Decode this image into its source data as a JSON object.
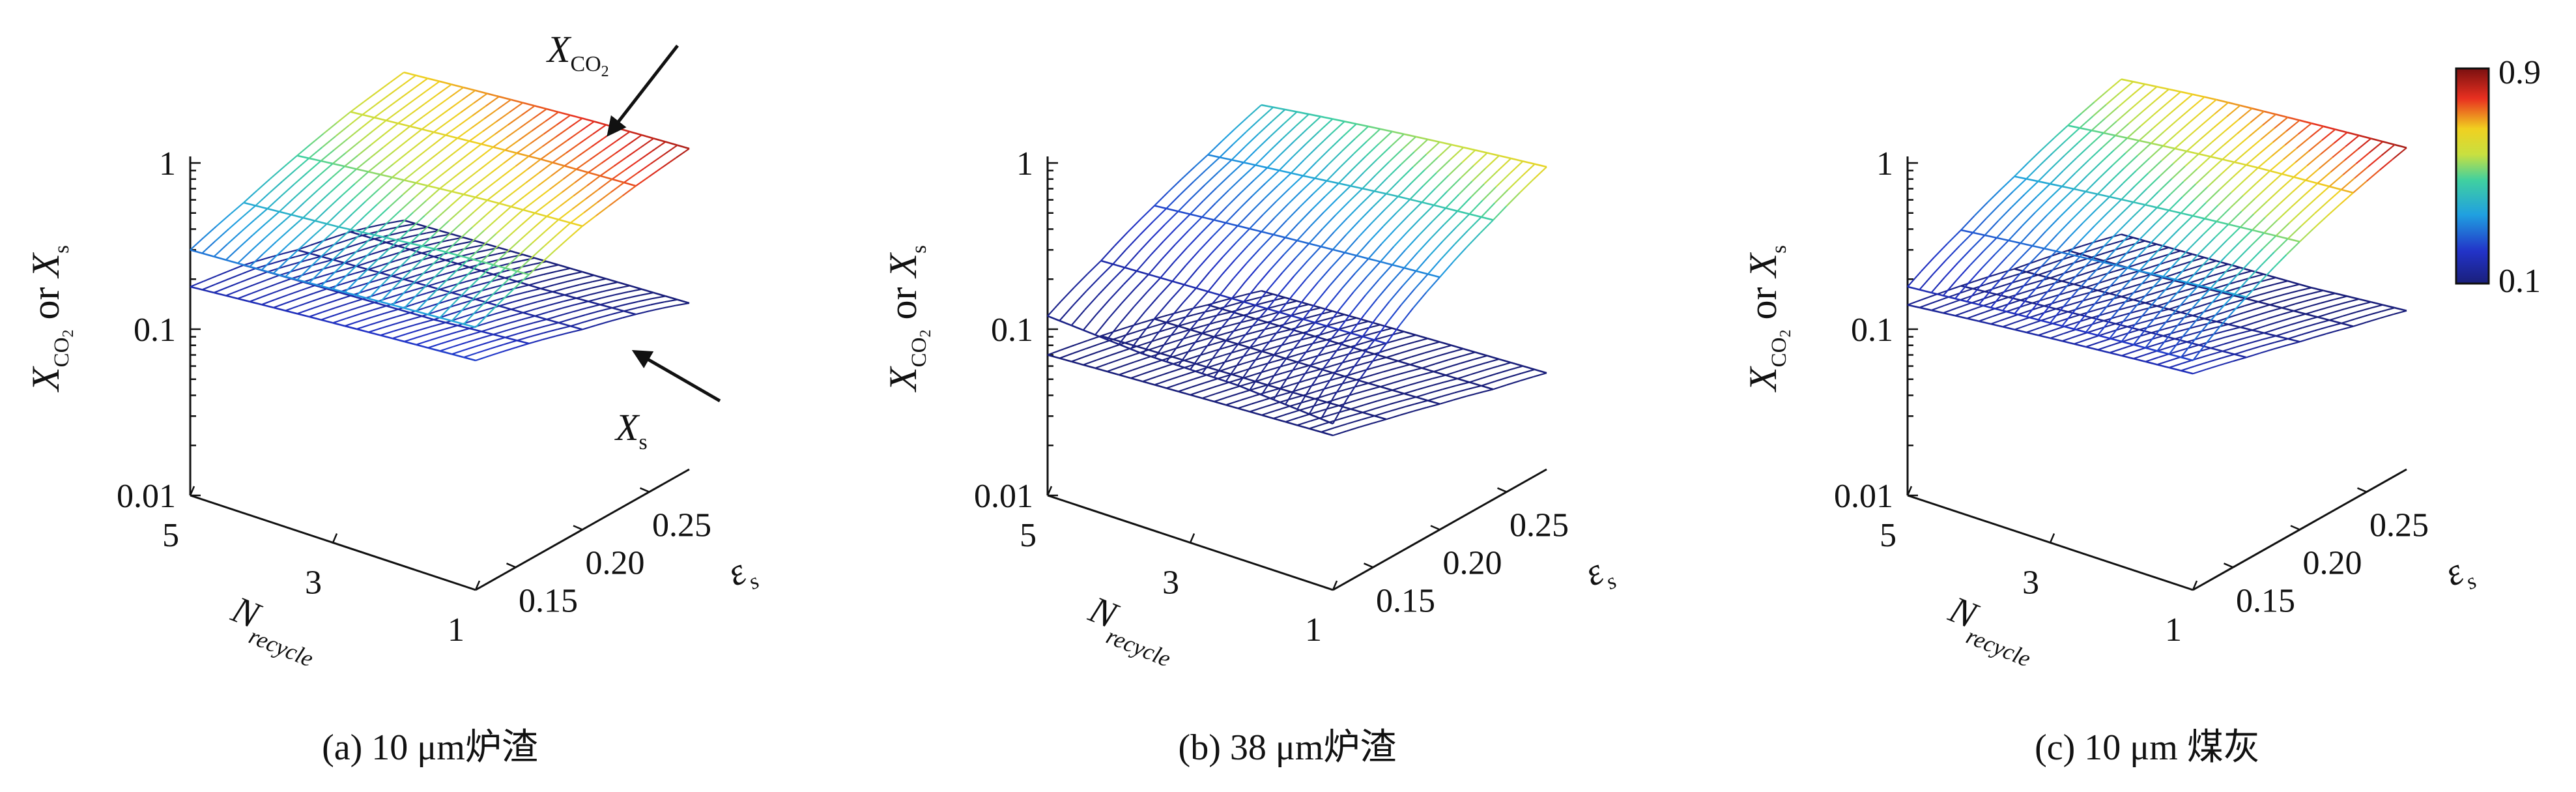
{
  "chart_data": {
    "type": "surface3d",
    "panels": [
      {
        "id": "a",
        "caption": "(a) 10 μm炉渣",
        "surfaces": [
          {
            "name": "X_CO2",
            "z_grid": [
              [
                0.3,
                0.38,
                0.48,
                0.58,
                0.66
              ],
              [
                0.32,
                0.42,
                0.55,
                0.65,
                0.73
              ],
              [
                0.35,
                0.48,
                0.62,
                0.72,
                0.8
              ],
              [
                0.38,
                0.52,
                0.67,
                0.77,
                0.85
              ]
            ]
          },
          {
            "name": "X_s",
            "z_grid": [
              [
                0.18,
                0.16,
                0.13,
                0.11,
                0.085
              ],
              [
                0.2,
                0.17,
                0.14,
                0.115,
                0.09
              ],
              [
                0.22,
                0.18,
                0.15,
                0.12,
                0.095
              ],
              [
                0.24,
                0.2,
                0.16,
                0.13,
                0.1
              ]
            ]
          }
        ],
        "annotations": [
          {
            "base": "X",
            "sub": "CO",
            "sub2": "2",
            "points_to": "X_CO2"
          },
          {
            "base": "X",
            "sub": "s",
            "sub2": "",
            "points_to": "X_s"
          }
        ]
      },
      {
        "id": "b",
        "caption": "(b) 38 μm炉渣",
        "surfaces": [
          {
            "name": "X_CO2",
            "z_grid": [
              [
                0.12,
                0.17,
                0.24,
                0.32,
                0.42
              ],
              [
                0.11,
                0.18,
                0.27,
                0.37,
                0.5
              ],
              [
                0.11,
                0.19,
                0.3,
                0.43,
                0.58
              ],
              [
                0.1,
                0.2,
                0.33,
                0.48,
                0.66
              ]
            ]
          },
          {
            "name": "X_s",
            "z_grid": [
              [
                0.07,
                0.06,
                0.05,
                0.04,
                0.032
              ],
              [
                0.075,
                0.063,
                0.052,
                0.042,
                0.034
              ],
              [
                0.08,
                0.066,
                0.054,
                0.044,
                0.036
              ],
              [
                0.085,
                0.07,
                0.057,
                0.046,
                0.038
              ]
            ]
          }
        ],
        "annotations": []
      },
      {
        "id": "c",
        "caption": "(c) 10 μm 煤灰",
        "surfaces": [
          {
            "name": "X_CO2",
            "z_grid": [
              [
                0.18,
                0.26,
                0.36,
                0.48,
                0.6
              ],
              [
                0.2,
                0.3,
                0.42,
                0.56,
                0.7
              ],
              [
                0.22,
                0.34,
                0.48,
                0.64,
                0.78
              ],
              [
                0.24,
                0.38,
                0.54,
                0.7,
                0.86
              ]
            ]
          },
          {
            "name": "X_s",
            "z_grid": [
              [
                0.14,
                0.12,
                0.1,
                0.085,
                0.07
              ],
              [
                0.16,
                0.135,
                0.11,
                0.09,
                0.075
              ],
              [
                0.18,
                0.15,
                0.12,
                0.1,
                0.08
              ],
              [
                0.2,
                0.165,
                0.135,
                0.11,
                0.09
              ]
            ]
          }
        ],
        "annotations": []
      }
    ],
    "axes": {
      "x": {
        "label": "N",
        "label_sub": "recycle",
        "ticks": [
          "5",
          "3",
          "1"
        ],
        "range": [
          5,
          1
        ]
      },
      "y": {
        "label": "ε",
        "label_sub": "s",
        "ticks": [
          "0.15",
          "0.20",
          "0.25"
        ],
        "range": [
          0.12,
          0.28
        ]
      },
      "z": {
        "label_parts": [
          "X",
          "CO",
          "2",
          "or ",
          "X",
          "s"
        ],
        "scale": "log",
        "ticks": [
          "0.01",
          "0.1",
          "1"
        ],
        "range": [
          0.01,
          1
        ]
      }
    },
    "colorbar": {
      "min_label": "0.1",
      "max_label": "0.9",
      "min": 0.1,
      "max": 0.9,
      "colormap": "jet"
    }
  }
}
